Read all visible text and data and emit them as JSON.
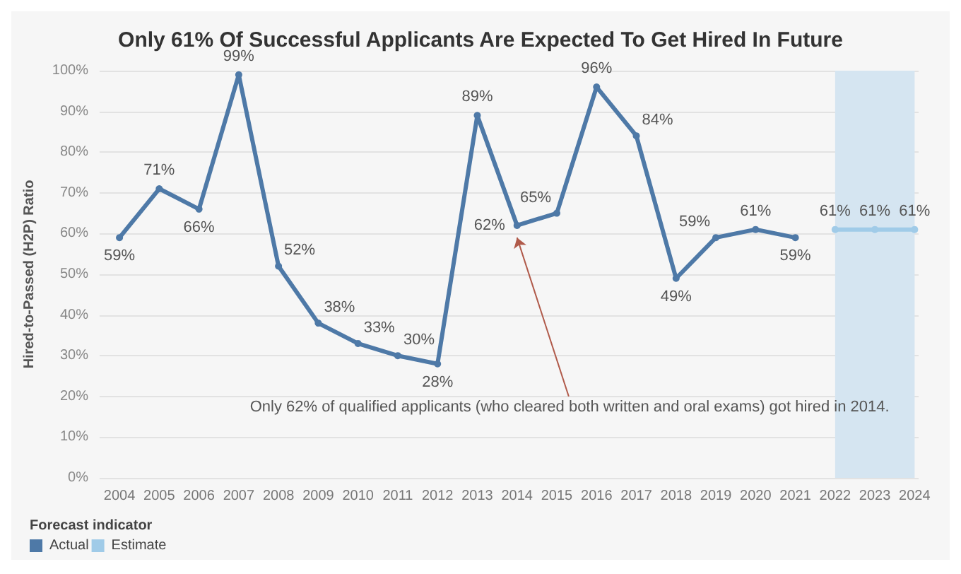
{
  "chart_data": {
    "type": "line",
    "title": "Only 61% Of Successful Applicants Are Expected To Get Hired In Future",
    "ylabel": "Hired-to-Passed (H2P) Ratio",
    "legend_title": "Forecast indicator",
    "legend": "bottom left",
    "grid": "y",
    "marker": "circle",
    "line_style": "solid",
    "xlim": [
      2003.5,
      2024.1
    ],
    "xticks": [
      2004,
      2005,
      2006,
      2007,
      2008,
      2009,
      2010,
      2011,
      2012,
      2013,
      2014,
      2015,
      2016,
      2017,
      2018,
      2019,
      2020,
      2021,
      2022,
      2023,
      2024
    ],
    "ylim": [
      0,
      100
    ],
    "yticks": [
      {
        "value": 0,
        "label": "0%"
      },
      {
        "value": 10,
        "label": "10%"
      },
      {
        "value": 20,
        "label": "20%"
      },
      {
        "value": 30,
        "label": "30%"
      },
      {
        "value": 40,
        "label": "40%"
      },
      {
        "value": 50,
        "label": "50%"
      },
      {
        "value": 60,
        "label": "60%"
      },
      {
        "value": 70,
        "label": "70%"
      },
      {
        "value": 80,
        "label": "80%"
      },
      {
        "value": 90,
        "label": "90%"
      },
      {
        "value": 100,
        "label": "100%"
      }
    ],
    "series": [
      {
        "name": "Actual",
        "color": "#4e79a7",
        "x": [
          2004,
          2005,
          2006,
          2007,
          2008,
          2009,
          2010,
          2011,
          2012,
          2013,
          2014,
          2015,
          2016,
          2017,
          2018,
          2019,
          2020,
          2021
        ],
        "values": [
          59,
          71,
          66,
          99,
          52,
          38,
          33,
          30,
          28,
          89,
          62,
          65,
          96,
          84,
          49,
          59,
          61,
          59
        ],
        "value_labels": [
          "59%",
          "71%",
          "66%",
          "99%",
          "52%",
          "38%",
          "33%",
          "30%",
          "28%",
          "89%",
          "62%",
          "65%",
          "96%",
          "84%",
          "49%",
          "59%",
          "61%",
          "59%"
        ]
      },
      {
        "name": "Estimate",
        "color": "#a0cbe8",
        "x": [
          2022,
          2023,
          2024
        ],
        "values": [
          61,
          61,
          61
        ],
        "value_labels": [
          "61%",
          "61%",
          "61%"
        ]
      }
    ],
    "bands": [
      {
        "axis": "x",
        "from": 2022,
        "to": 2024,
        "color": "#d5e5f1"
      }
    ],
    "annotations": [
      {
        "text": "Only 62% of qualified applicants (who cleared both written and oral exams) got hired in 2014.",
        "x": 2014,
        "y": 62
      }
    ]
  }
}
